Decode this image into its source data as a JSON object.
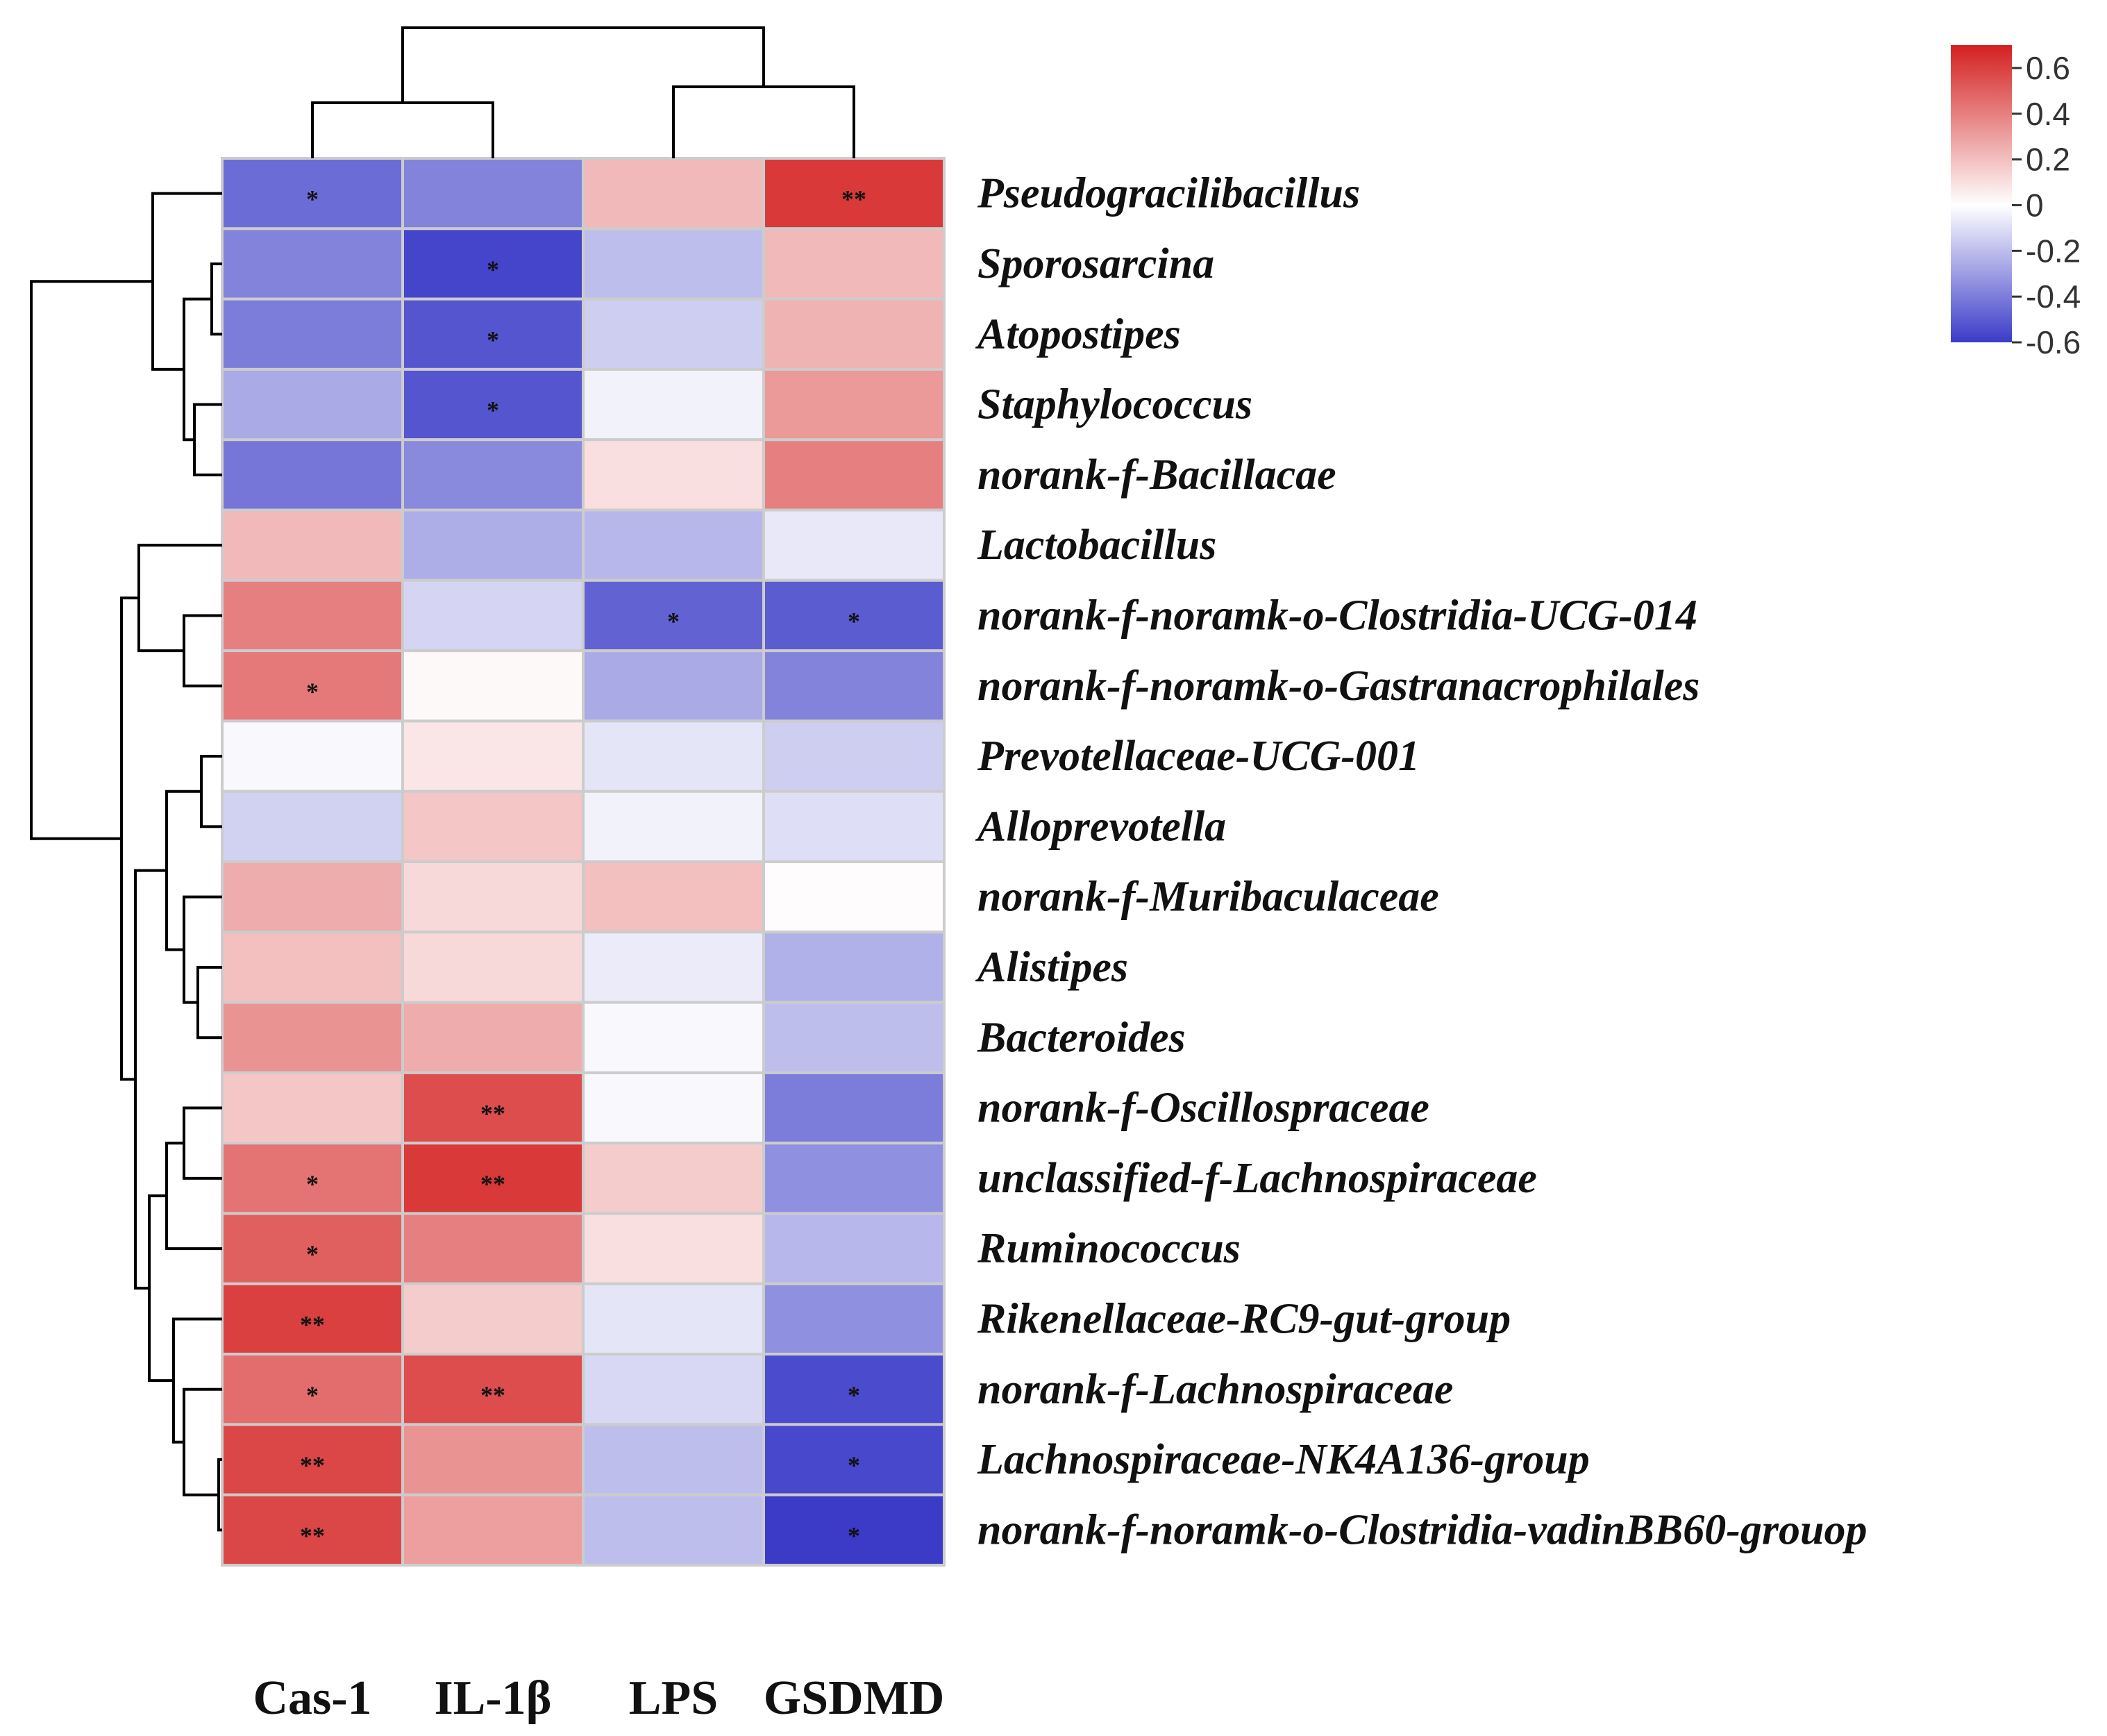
{
  "chart_data": {
    "type": "heatmap",
    "columns": [
      "Cas-1",
      "IL-1β",
      "LPS",
      "GSDMD"
    ],
    "rows": [
      {
        "name": "Pseudogracilibacillus",
        "values": [
          -0.45,
          -0.38,
          0.22,
          0.62
        ],
        "sig": [
          "*",
          "",
          "",
          "**"
        ]
      },
      {
        "name": "Sporosarcina",
        "values": [
          -0.38,
          -0.57,
          -0.2,
          0.22
        ],
        "sig": [
          "",
          "*",
          "",
          ""
        ]
      },
      {
        "name": "Atopostipes",
        "values": [
          -0.4,
          -0.52,
          -0.15,
          0.24
        ],
        "sig": [
          "",
          "*",
          "",
          ""
        ]
      },
      {
        "name": "Staphylococcus",
        "values": [
          -0.26,
          -0.52,
          -0.04,
          0.32
        ],
        "sig": [
          "",
          "*",
          "",
          ""
        ]
      },
      {
        "name": "norank-f-Bacillacae",
        "values": [
          -0.42,
          -0.36,
          0.1,
          0.4
        ],
        "sig": [
          "",
          "",
          "",
          ""
        ]
      },
      {
        "name": "Lactobacillus",
        "values": [
          0.22,
          -0.25,
          -0.22,
          -0.07
        ],
        "sig": [
          "",
          "",
          "",
          ""
        ]
      },
      {
        "name": "norank-f-noramk-o-Clostridia-UCG-014",
        "values": [
          0.4,
          -0.13,
          -0.48,
          -0.5
        ],
        "sig": [
          "",
          "",
          "*",
          "*"
        ]
      },
      {
        "name": "norank-f-noramk-o-Gastranacrophilales",
        "values": [
          0.42,
          0.02,
          -0.26,
          -0.38
        ],
        "sig": [
          "*",
          "",
          "",
          ""
        ]
      },
      {
        "name": "Prevotellaceae-UCG-001",
        "values": [
          -0.02,
          0.08,
          -0.08,
          -0.15
        ],
        "sig": [
          "",
          "",
          "",
          ""
        ]
      },
      {
        "name": "Alloprevotella",
        "values": [
          -0.14,
          0.18,
          -0.04,
          -0.1
        ],
        "sig": [
          "",
          "",
          "",
          ""
        ]
      },
      {
        "name": "norank-f-Muribaculaceae",
        "values": [
          0.26,
          0.12,
          0.2,
          0.01
        ],
        "sig": [
          "",
          "",
          "",
          ""
        ]
      },
      {
        "name": "Alistipes",
        "values": [
          0.2,
          0.12,
          -0.06,
          -0.24
        ],
        "sig": [
          "",
          "",
          "",
          ""
        ]
      },
      {
        "name": "Bacteroides",
        "values": [
          0.34,
          0.26,
          -0.02,
          -0.2
        ],
        "sig": [
          "",
          "",
          "",
          ""
        ]
      },
      {
        "name": "norank-f-Oscillospraceae",
        "values": [
          0.18,
          0.56,
          -0.02,
          -0.4
        ],
        "sig": [
          "",
          "**",
          "",
          ""
        ]
      },
      {
        "name": "unclassified-f-Lachnospiraceae",
        "values": [
          0.44,
          0.62,
          0.16,
          -0.34
        ],
        "sig": [
          "*",
          "**",
          "",
          ""
        ]
      },
      {
        "name": "Ruminococcus",
        "values": [
          0.5,
          0.4,
          0.1,
          -0.22
        ],
        "sig": [
          "*",
          "",
          "",
          ""
        ]
      },
      {
        "name": "Rikenellaceae-RC9-gut-group",
        "values": [
          0.6,
          0.16,
          -0.08,
          -0.34
        ],
        "sig": [
          "**",
          "",
          "",
          ""
        ]
      },
      {
        "name": "norank-f-Lachnospiraceae",
        "values": [
          0.46,
          0.56,
          -0.12,
          -0.55
        ],
        "sig": [
          "*",
          "**",
          "",
          "*"
        ]
      },
      {
        "name": "Lachnospiraceae-NK4A136-group",
        "values": [
          0.58,
          0.34,
          -0.2,
          -0.56
        ],
        "sig": [
          "**",
          "",
          "",
          "*"
        ]
      },
      {
        "name": "norank-f-noramk-o-Clostridia-vadinBB60-grouop",
        "values": [
          0.58,
          0.3,
          -0.2,
          -0.6
        ],
        "sig": [
          "**",
          "",
          "",
          "*"
        ]
      }
    ],
    "color_scale": {
      "min": -0.6,
      "max": 0.7,
      "low_color": "#3b3bc8",
      "mid_color": "#ffffff",
      "high_color": "#d42020",
      "ticks": [
        0.6,
        0.4,
        0.2,
        0,
        -0.2,
        -0.4,
        -0.6
      ],
      "tick_labels": [
        "0.6",
        "0.4",
        "0.2",
        "0",
        "-0.2",
        "-0.4",
        "-0.6"
      ]
    },
    "legend_position": "top-right",
    "cell_border_color": "#cccccc",
    "dendrogram_color": "#000000"
  }
}
